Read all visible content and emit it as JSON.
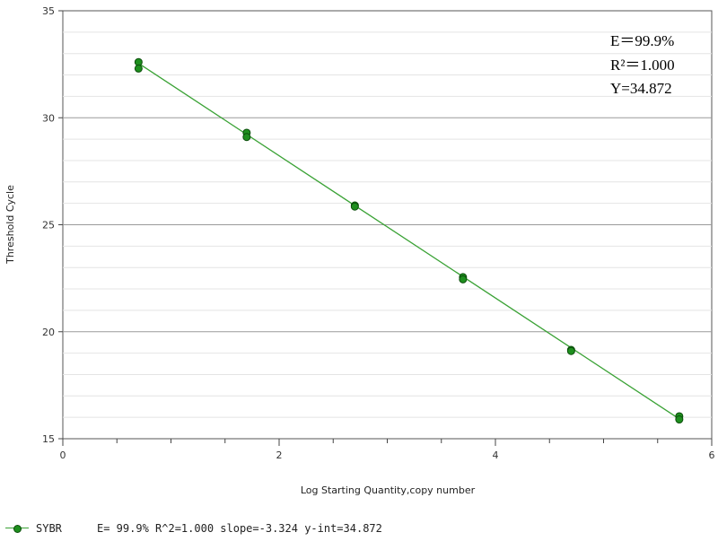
{
  "chart_data": {
    "type": "scatter",
    "xlabel": "Log Starting Quantity,copy number",
    "ylabel": "Threshold Cycle",
    "xlim": [
      0,
      6
    ],
    "ylim": [
      15,
      35
    ],
    "x_ticks": [
      0,
      2,
      4,
      6
    ],
    "y_ticks": [
      15,
      20,
      25,
      30,
      35
    ],
    "grid": "horizontal",
    "series": [
      {
        "name": "SYBR",
        "color": "#1e8f1e",
        "line_color": "#3aa235",
        "x": [
          0.7,
          0.7,
          1.7,
          1.7,
          2.7,
          2.7,
          3.7,
          3.7,
          4.7,
          4.7,
          5.7,
          5.7
        ],
        "y": [
          32.6,
          32.3,
          29.3,
          29.1,
          25.9,
          25.85,
          22.55,
          22.45,
          19.15,
          19.1,
          16.05,
          15.9
        ]
      }
    ],
    "fit_line": {
      "slope": -3.324,
      "intercept": 34.872,
      "x_range": [
        0.7,
        5.7
      ]
    },
    "annotations": [
      "E＝99.9%",
      "R²＝1.000",
      "Y=34.872"
    ],
    "legend": {
      "placement": "bottom-left",
      "entries": [
        {
          "name": "SYBR",
          "text": "E= 99.9% R^2=1.000 slope=-3.324 y-int=34.872"
        }
      ]
    }
  }
}
